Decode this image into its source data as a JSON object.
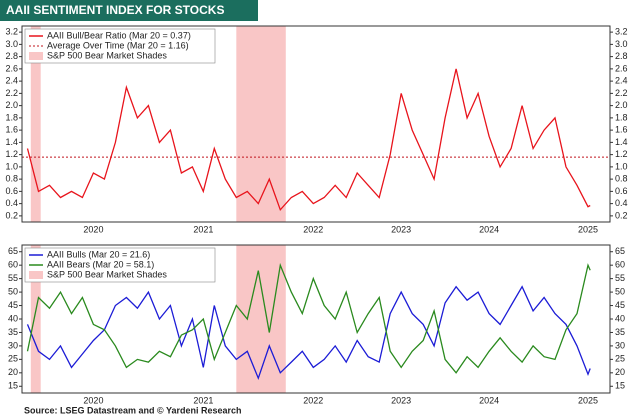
{
  "title": "AAII SENTIMENT INDEX FOR STOCKS",
  "source": "Source: LSEG Datastream and © Yardeni Research",
  "chart_data": [
    {
      "type": "line",
      "x": [
        2020.1,
        2020.2,
        2020.3,
        2020.4,
        2020.5,
        2020.6,
        2020.7,
        2020.8,
        2020.9,
        2021.0,
        2021.1,
        2021.2,
        2021.3,
        2021.4,
        2021.5,
        2021.6,
        2021.7,
        2021.8,
        2021.9,
        2022.0,
        2022.1,
        2022.2,
        2022.3,
        2022.4,
        2022.5,
        2022.6,
        2022.7,
        2022.8,
        2022.9,
        2023.0,
        2023.1,
        2023.2,
        2023.3,
        2023.4,
        2023.5,
        2023.6,
        2023.7,
        2023.8,
        2023.9,
        2024.0,
        2024.1,
        2024.2,
        2024.3,
        2024.4,
        2024.5,
        2024.6,
        2024.7,
        2024.8,
        2024.9,
        2025.0,
        2025.1,
        2025.2,
        2025.22
      ],
      "series": [
        {
          "name": "AAII Bull/Bear Ratio (Mar 20 = 0.37)",
          "color": "#e8141c",
          "values": [
            1.3,
            0.6,
            0.7,
            0.5,
            0.6,
            0.5,
            0.9,
            0.8,
            1.4,
            2.3,
            1.8,
            2.0,
            1.4,
            1.6,
            0.9,
            1.0,
            0.6,
            1.3,
            0.8,
            0.5,
            0.6,
            0.4,
            0.8,
            0.3,
            0.5,
            0.6,
            0.4,
            0.5,
            0.7,
            0.5,
            0.9,
            0.7,
            0.5,
            1.2,
            2.2,
            1.6,
            1.2,
            0.8,
            1.8,
            2.6,
            1.8,
            2.2,
            1.5,
            1.0,
            1.3,
            2.0,
            1.3,
            1.6,
            1.8,
            1.0,
            0.7,
            0.35,
            0.37
          ]
        }
      ],
      "reference": {
        "name": "Average Over Time (Mar 20 = 1.16)",
        "value": 1.16,
        "color": "#c0141c"
      },
      "shades": {
        "name": "S&P 500 Bear Market Shades",
        "color": "#f9c6c6",
        "ranges": [
          [
            2020.13,
            2020.22
          ],
          [
            2022.0,
            2022.45
          ]
        ]
      },
      "xlim": [
        2020.05,
        2025.4
      ],
      "xticks": [
        {
          "value": 2020.7,
          "label": "2020"
        },
        {
          "value": 2021.7,
          "label": "2021"
        },
        {
          "value": 2022.7,
          "label": "2022"
        },
        {
          "value": 2023.5,
          "label": "2023"
        },
        {
          "value": 2024.3,
          "label": "2024"
        },
        {
          "value": 2025.2,
          "label": "2025"
        }
      ],
      "ylim": [
        0.1,
        3.3
      ],
      "yticks": [
        0.2,
        0.4,
        0.6,
        0.8,
        {
          "value": 1,
          "label": "1.0"
        },
        1.2,
        1.4,
        1.6,
        1.8,
        {
          "value": 2,
          "label": "2.0"
        },
        2.2,
        2.4,
        2.6,
        2.8,
        {
          "value": 3,
          "label": "3.0"
        },
        3.2
      ]
    },
    {
      "type": "line",
      "x": [
        2020.1,
        2020.2,
        2020.3,
        2020.4,
        2020.5,
        2020.6,
        2020.7,
        2020.8,
        2020.9,
        2021.0,
        2021.1,
        2021.2,
        2021.3,
        2021.4,
        2021.5,
        2021.6,
        2021.7,
        2021.8,
        2021.9,
        2022.0,
        2022.1,
        2022.2,
        2022.3,
        2022.4,
        2022.5,
        2022.6,
        2022.7,
        2022.8,
        2022.9,
        2023.0,
        2023.1,
        2023.2,
        2023.3,
        2023.4,
        2023.5,
        2023.6,
        2023.7,
        2023.8,
        2023.9,
        2024.0,
        2024.1,
        2024.2,
        2024.3,
        2024.4,
        2024.5,
        2024.6,
        2024.7,
        2024.8,
        2024.9,
        2025.0,
        2025.1,
        2025.2,
        2025.22
      ],
      "series": [
        {
          "name": "AAII Bulls  (Mar 20 = 21.6)",
          "color": "#1c1cd6",
          "values": [
            38,
            28,
            25,
            30,
            22,
            27,
            32,
            36,
            45,
            48,
            44,
            50,
            40,
            45,
            30,
            40,
            22,
            45,
            30,
            25,
            28,
            18,
            30,
            20,
            24,
            28,
            22,
            25,
            30,
            24,
            32,
            26,
            24,
            42,
            50,
            42,
            38,
            30,
            46,
            52,
            47,
            50,
            42,
            38,
            45,
            52,
            43,
            48,
            42,
            38,
            30,
            19.5,
            21.6
          ]
        },
        {
          "name": "AAII Bears  (Mar 20 = 58.1)",
          "color": "#2a8a1e",
          "values": [
            28,
            48,
            44,
            50,
            42,
            48,
            38,
            36,
            30,
            22,
            25,
            24,
            28,
            26,
            34,
            36,
            40,
            25,
            35,
            45,
            40,
            58,
            35,
            60,
            50,
            42,
            55,
            45,
            40,
            50,
            35,
            42,
            48,
            28,
            22,
            28,
            32,
            43,
            25,
            20,
            26,
            22,
            28,
            33,
            28,
            24,
            30,
            26,
            25,
            36,
            42,
            60,
            58.1
          ]
        }
      ],
      "shades": {
        "name": "S&P 500 Bear Market Shades",
        "color": "#f9c6c6",
        "ranges": [
          [
            2020.13,
            2020.22
          ],
          [
            2022.0,
            2022.45
          ]
        ]
      },
      "xlim": [
        2020.05,
        2025.4
      ],
      "xticks": [
        {
          "value": 2020.7,
          "label": "2020"
        },
        {
          "value": 2021.7,
          "label": "2021"
        },
        {
          "value": 2022.7,
          "label": "2022"
        },
        {
          "value": 2023.5,
          "label": "2023"
        },
        {
          "value": 2024.3,
          "label": "2024"
        },
        {
          "value": 2025.2,
          "label": "2025"
        }
      ],
      "ylim": [
        12.5,
        67.5
      ],
      "yticks": [
        15,
        20,
        25,
        30,
        35,
        40,
        45,
        50,
        55,
        60,
        65
      ]
    }
  ]
}
